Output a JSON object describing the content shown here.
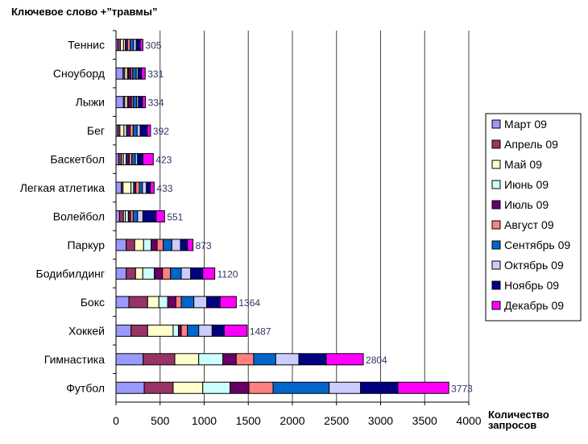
{
  "chart_data": {
    "type": "bar",
    "orientation": "horizontal",
    "stacked": true,
    "title": "Ключевое слово +”травмы”",
    "xlabel": "Количество запросов",
    "ylabel": "",
    "xlim": [
      0,
      4000
    ],
    "xticks": [
      0,
      500,
      1000,
      1500,
      2000,
      2500,
      3000,
      3500,
      4000
    ],
    "grid": "vertical",
    "legend_position": "right",
    "categories": [
      "Теннис",
      "Сноуборд",
      "Лыжи",
      "Бег",
      "Баскетбол",
      "Легкая атлетика",
      "Волейбол",
      "Паркур",
      "Бодибилдинг",
      "Бокс",
      "Хоккей",
      "Гимнастика",
      "Футбол"
    ],
    "totals": [
      305,
      331,
      334,
      392,
      423,
      433,
      551,
      873,
      1120,
      1364,
      1487,
      2804,
      3773
    ],
    "series": [
      {
        "name": "Март 09",
        "color": "#9999FF",
        "values": [
          20,
          80,
          85,
          20,
          30,
          60,
          40,
          116,
          116,
          146,
          171,
          308,
          320
        ]
      },
      {
        "name": "Апрель 09",
        "color": "#993366",
        "values": [
          30,
          20,
          15,
          25,
          35,
          20,
          45,
          96,
          106,
          213,
          188,
          359,
          328
        ]
      },
      {
        "name": "Май 09",
        "color": "#FFFFCC",
        "values": [
          35,
          30,
          30,
          45,
          20,
          90,
          20,
          101,
          82,
          128,
          289,
          271,
          336
        ]
      },
      {
        "name": "Июнь 09",
        "color": "#CCFFFF",
        "values": [
          20,
          10,
          10,
          30,
          30,
          30,
          35,
          86,
          131,
          100,
          61,
          274,
          310
        ]
      },
      {
        "name": "Июль 09",
        "color": "#660066",
        "values": [
          25,
          30,
          35,
          40,
          35,
          25,
          25,
          67,
          92,
          92,
          31,
          151,
          213
        ]
      },
      {
        "name": "Август 09",
        "color": "#FF8080",
        "values": [
          30,
          20,
          20,
          35,
          30,
          40,
          30,
          70,
          91,
          61,
          70,
          198,
          274
        ]
      },
      {
        "name": "Сентябрь 09",
        "color": "#0066CC",
        "values": [
          40,
          40,
          40,
          45,
          40,
          35,
          50,
          97,
          122,
          143,
          128,
          250,
          636
        ]
      },
      {
        "name": "Октябрь 09",
        "color": "#CCCCFF",
        "values": [
          30,
          20,
          20,
          35,
          25,
          45,
          60,
          98,
          107,
          146,
          152,
          262,
          356
        ]
      },
      {
        "name": "Ноябрь 09",
        "color": "#000080",
        "values": [
          45,
          40,
          45,
          80,
          60,
          45,
          150,
          79,
          137,
          151,
          137,
          311,
          423
        ]
      },
      {
        "name": "Декабрь 09",
        "color": "#FF00FF",
        "values": [
          30,
          41,
          34,
          37,
          118,
          43,
          96,
          63,
          136,
          184,
          260,
          420,
          577
        ]
      }
    ]
  }
}
